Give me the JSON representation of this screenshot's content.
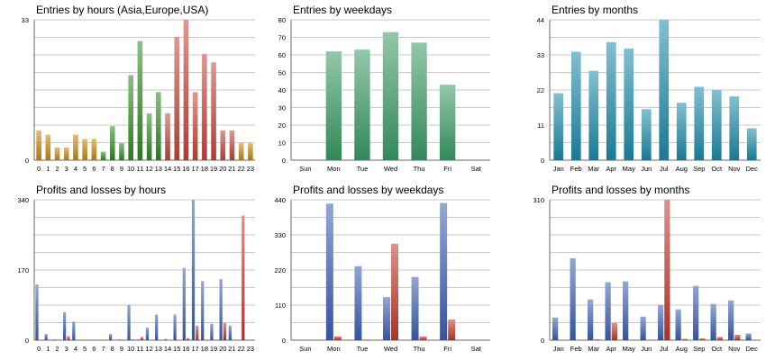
{
  "chart_data": [
    {
      "id": "hours-entries",
      "type": "bar",
      "title": "Entries by hours (Asia,Europe,USA)",
      "categories": [
        "0",
        "1",
        "2",
        "3",
        "4",
        "5",
        "6",
        "7",
        "8",
        "9",
        "10",
        "11",
        "12",
        "13",
        "14",
        "15",
        "16",
        "17",
        "18",
        "19",
        "20",
        "21",
        "22",
        "23"
      ],
      "values": [
        7,
        6,
        3,
        3,
        6,
        5,
        5,
        2,
        8,
        4,
        20,
        28,
        11,
        16,
        11,
        29,
        33,
        16,
        25,
        23,
        7,
        7,
        4,
        4
      ],
      "colors": [
        "#c8860a",
        "#c8860a",
        "#c8860a",
        "#c8860a",
        "#c8860a",
        "#c8860a",
        "#c8860a",
        "#2e8b1e",
        "#2e8b1e",
        "#2e8b1e",
        "#2e8b1e",
        "#2e8b1e",
        "#2e8b1e",
        "#2e8b1e",
        "#c0463a",
        "#c0463a",
        "#c0463a",
        "#c0463a",
        "#c0463a",
        "#c0463a",
        "#c0463a",
        "#c0463a",
        "#c8860a",
        "#c8860a"
      ],
      "ylim": [
        0,
        33
      ],
      "yticks": [
        0,
        33
      ],
      "xlabel": "",
      "ylabel": "",
      "grid": true
    },
    {
      "id": "weekday-entries",
      "type": "bar",
      "title": "Entries by weekdays",
      "categories": [
        "Sun",
        "Mon",
        "Tue",
        "Wed",
        "Thu",
        "Fri",
        "Sat"
      ],
      "values": [
        0,
        62,
        63,
        73,
        67,
        43,
        0
      ],
      "color": "#3a9a64",
      "ylim": [
        0,
        80
      ],
      "yticks": [
        0,
        10,
        20,
        30,
        40,
        50,
        60,
        70,
        80
      ],
      "xlabel": "",
      "ylabel": "",
      "grid": true
    },
    {
      "id": "month-entries",
      "type": "bar",
      "title": "Entries by months",
      "categories": [
        "Jan",
        "Feb",
        "Mar",
        "Apr",
        "May",
        "Jun",
        "Jul",
        "Aug",
        "Sep",
        "Oct",
        "Nov",
        "Dec"
      ],
      "values": [
        21,
        34,
        28,
        37,
        35,
        16,
        44,
        18,
        23,
        22,
        20,
        10
      ],
      "color": "#1e8aa8",
      "ylim": [
        0,
        44
      ],
      "yticks": [
        0,
        11,
        22,
        33,
        44
      ],
      "xlabel": "",
      "ylabel": "",
      "grid": true
    },
    {
      "id": "hours-pl",
      "type": "bar",
      "title": "Profits and losses by hours",
      "categories": [
        "0",
        "1",
        "2",
        "3",
        "4",
        "5",
        "6",
        "7",
        "8",
        "9",
        "10",
        "11",
        "12",
        "13",
        "14",
        "15",
        "16",
        "17",
        "18",
        "19",
        "20",
        "21",
        "22",
        "23"
      ],
      "series": [
        {
          "name": "Profits",
          "color": "#3b5fb0",
          "values": [
            135,
            15,
            2,
            68,
            45,
            0,
            0,
            0,
            15,
            2,
            85,
            2,
            30,
            62,
            3,
            62,
            175,
            340,
            143,
            40,
            148,
            35,
            0,
            0
          ]
        },
        {
          "name": "Losses",
          "color": "#c0392b",
          "values": [
            0,
            0,
            0,
            10,
            0,
            0,
            0,
            0,
            0,
            0,
            2,
            8,
            0,
            0,
            0,
            0,
            5,
            35,
            0,
            0,
            42,
            0,
            302,
            0
          ]
        }
      ],
      "ylim": [
        0,
        340
      ],
      "yticks": [
        0,
        170,
        340
      ],
      "xlabel": "",
      "ylabel": "",
      "grid": true
    },
    {
      "id": "weekday-pl",
      "type": "bar",
      "title": "Profits and losses by weekdays",
      "categories": [
        "Sun",
        "Mon",
        "Tue",
        "Wed",
        "Thu",
        "Fri",
        "Sat"
      ],
      "series": [
        {
          "name": "Profits",
          "color": "#3b5fb0",
          "values": [
            0,
            428,
            232,
            135,
            198,
            430,
            0
          ]
        },
        {
          "name": "Losses",
          "color": "#c0392b",
          "values": [
            0,
            12,
            2,
            302,
            12,
            65,
            0
          ]
        }
      ],
      "ylim": [
        0,
        440
      ],
      "yticks": [
        0,
        110,
        220,
        330,
        440
      ],
      "xlabel": "",
      "ylabel": "",
      "grid": true
    },
    {
      "id": "month-pl",
      "type": "bar",
      "title": "Profits and losses by months",
      "categories": [
        "Jan",
        "Feb",
        "Mar",
        "Apr",
        "May",
        "Jun",
        "Jul",
        "Aug",
        "Sep",
        "Oct",
        "Nov",
        "Dec"
      ],
      "series": [
        {
          "name": "Profits",
          "color": "#3b5fb0",
          "values": [
            50,
            181,
            90,
            128,
            130,
            52,
            78,
            68,
            120,
            80,
            88,
            15
          ]
        },
        {
          "name": "Losses",
          "color": "#c0392b",
          "values": [
            0,
            0,
            2,
            38,
            0,
            0,
            310,
            3,
            4,
            7,
            12,
            0
          ]
        }
      ],
      "ylim": [
        0,
        310
      ],
      "yticks": [
        0,
        310
      ],
      "xlabel": "",
      "ylabel": "",
      "grid": true
    }
  ]
}
